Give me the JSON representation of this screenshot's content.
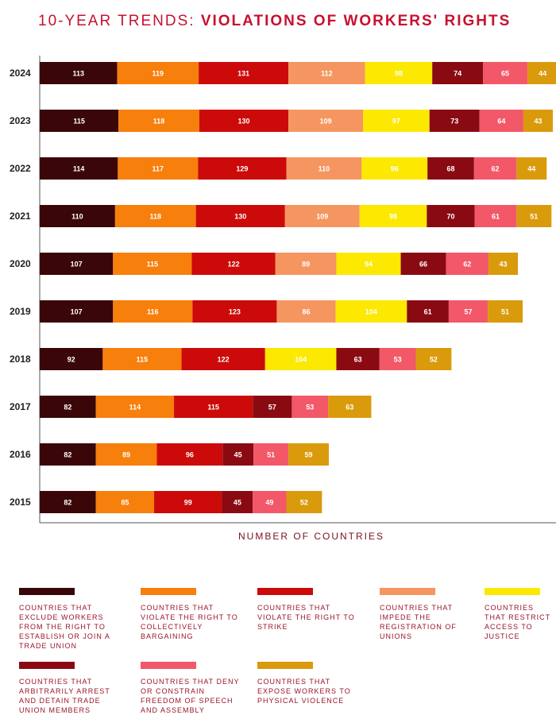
{
  "title": {
    "light": "10-YEAR TRENDS:",
    "bold": "VIOLATIONS OF WORKERS' RIGHTS"
  },
  "chart_data": {
    "type": "stacked-bar-horizontal",
    "title": "10-YEAR TRENDS: VIOLATIONS OF WORKERS' RIGHTS",
    "xlabel": "NUMBER OF COUNTRIES",
    "ylabel": "",
    "categories": [
      "2024",
      "2023",
      "2022",
      "2021",
      "2020",
      "2019",
      "2018",
      "2017",
      "2016",
      "2015"
    ],
    "series": [
      {
        "name": "COUNTRIES THAT EXCLUDE WORKERS FROM THE RIGHT TO ESTABLISH OR JOIN A TRADE UNION",
        "color": "#3a0608",
        "values": [
          113,
          115,
          114,
          110,
          107,
          107,
          92,
          82,
          82,
          82
        ]
      },
      {
        "name": "COUNTRIES THAT VIOLATE THE RIGHT TO COLLECTIVELY BARGAINING",
        "color": "#f77f0c",
        "values": [
          119,
          118,
          117,
          118,
          115,
          116,
          115,
          114,
          89,
          85
        ]
      },
      {
        "name": "COUNTRIES THAT VIOLATE THE RIGHT TO STRIKE",
        "color": "#cc0a0a",
        "values": [
          131,
          130,
          129,
          130,
          122,
          123,
          122,
          115,
          96,
          99
        ]
      },
      {
        "name": "COUNTRIES THAT IMPEDE THE REGISTRATION OF UNIONS",
        "color": "#f59660",
        "values": [
          112,
          109,
          110,
          109,
          89,
          86,
          null,
          null,
          null,
          null
        ]
      },
      {
        "name": "COUNTRIES THAT RESTRICT ACCESS TO JUSTICE",
        "color": "#fce800",
        "values": [
          98,
          97,
          96,
          98,
          94,
          104,
          104,
          null,
          null,
          null
        ]
      },
      {
        "name": "COUNTRIES THAT ARBITRARILY ARREST AND DETAIN TRADE UNION MEMBERS",
        "color": "#8a0a12",
        "values": [
          74,
          73,
          68,
          70,
          66,
          61,
          63,
          57,
          45,
          45
        ]
      },
      {
        "name": "COUNTRIES THAT DENY OR CONSTRAIN FREEDOM OF SPEECH AND ASSEMBLY",
        "color": "#f25868",
        "values": [
          65,
          64,
          62,
          61,
          62,
          57,
          53,
          53,
          51,
          49
        ]
      },
      {
        "name": "COUNTRIES THAT EXPOSE WORKERS TO PHYSICAL VIOLENCE",
        "color": "#d99a0c",
        "values": [
          44,
          43,
          44,
          51,
          43,
          51,
          52,
          63,
          59,
          52
        ]
      }
    ],
    "grid": false,
    "legend": "bottom"
  },
  "legend": [
    "COUNTRIES THAT EXCLUDE WORKERS FROM THE RIGHT TO ESTABLISH OR JOIN A TRADE UNION",
    "COUNTRIES THAT VIOLATE THE RIGHT TO COLLECTIVELY BARGAINING",
    "COUNTRIES THAT VIOLATE THE RIGHT TO STRIKE",
    "COUNTRIES THAT IMPEDE THE REGISTRATION OF UNIONS",
    "COUNTRIES THAT RESTRICT ACCESS TO JUSTICE",
    "COUNTRIES THAT ARBITRARILY ARREST AND DETAIN TRADE UNION MEMBERS",
    "COUNTRIES THAT DENY OR CONSTRAIN FREEDOM OF SPEECH AND ASSEMBLY",
    "COUNTRIES THAT EXPOSE WORKERS TO PHYSICAL VIOLENCE"
  ]
}
